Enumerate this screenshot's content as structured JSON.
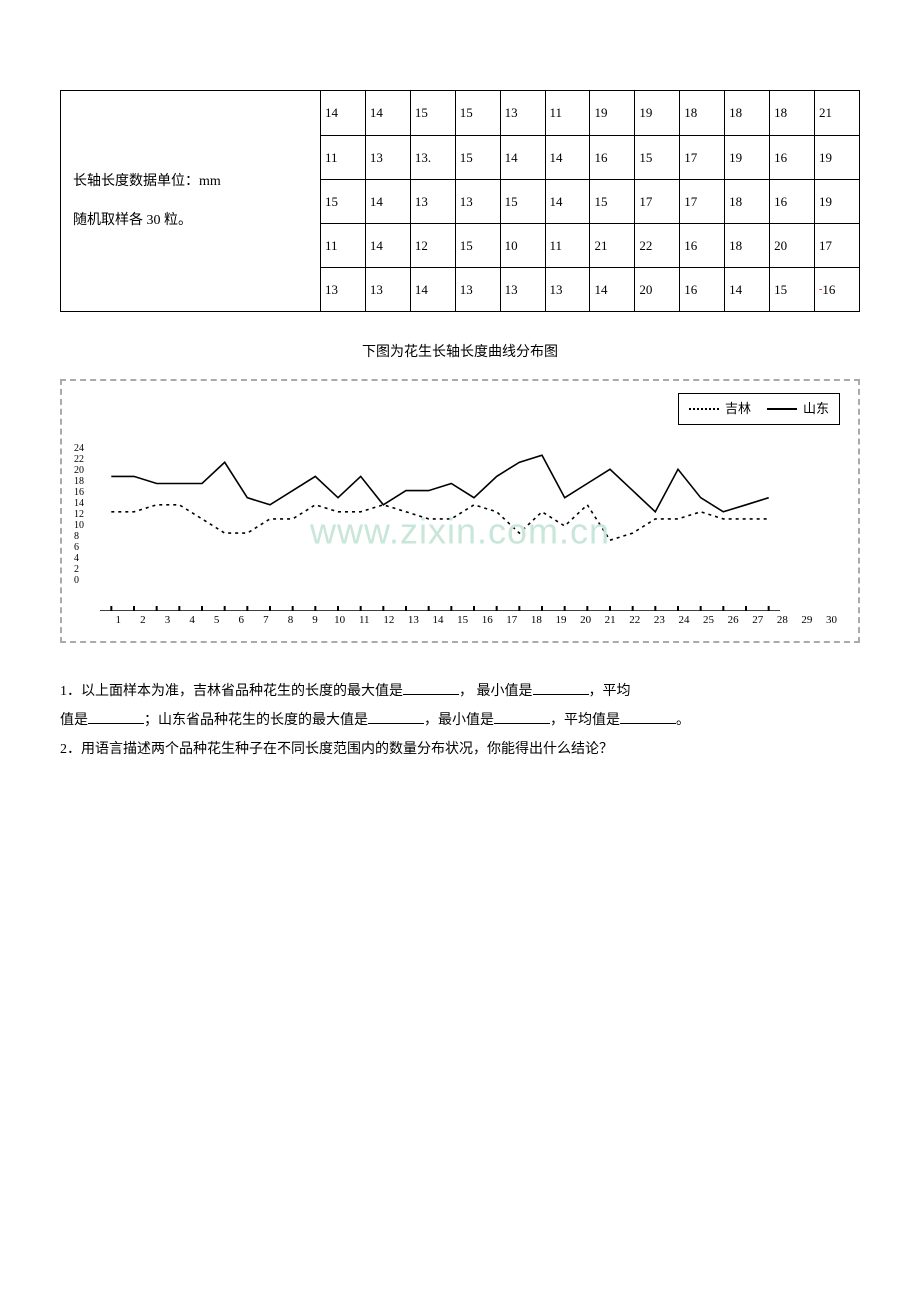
{
  "table": {
    "desc_line1": "长轴长度数据单位：mm",
    "desc_line2": "随机取样各 30 粒。",
    "rows": [
      [
        "14",
        "14",
        "15",
        "15",
        "13",
        "11",
        "19",
        "19",
        "18",
        "18",
        "18",
        "21"
      ],
      [
        "11",
        "13",
        "13.",
        "15",
        "14",
        "14",
        "16",
        "15",
        "17",
        "19",
        "16",
        "19"
      ],
      [
        "15",
        "14",
        "13",
        "13",
        "15",
        "14",
        "15",
        "17",
        "17",
        "18",
        "16",
        "19"
      ],
      [
        "11",
        "14",
        "12",
        "15",
        "10",
        "11",
        "21",
        "22",
        "16",
        "18",
        "20",
        "17"
      ],
      [
        "13",
        "13",
        "14",
        "13",
        "13",
        "13",
        "14",
        "20",
        "16",
        "14",
        "15",
        "16"
      ]
    ],
    "last_cell_prefix": "-",
    "last_cell_value": "16"
  },
  "chart": {
    "title": "下图为花生长轴长度曲线分布图",
    "legend": {
      "a": "吉林",
      "b": "山东"
    },
    "watermark": "www.zixin.com.cn",
    "ylabels": [
      "24",
      "22",
      "20",
      "18",
      "16",
      "14",
      "12",
      "10",
      "8",
      "6",
      "4",
      "2",
      "0"
    ],
    "xmax": 30,
    "ylim": [
      0,
      24
    ],
    "jilin": [
      14,
      14,
      15,
      15,
      13,
      11,
      11,
      13,
      13,
      15,
      14,
      14,
      15,
      14,
      13,
      13,
      15,
      14,
      11,
      14,
      12,
      15,
      10,
      11,
      13,
      13,
      14,
      13,
      13,
      13
    ],
    "shandong": [
      19,
      19,
      18,
      18,
      18,
      21,
      16,
      15,
      17,
      19,
      16,
      19,
      15,
      17,
      17,
      18,
      16,
      19,
      21,
      22,
      16,
      18,
      20,
      17,
      14,
      20,
      16,
      14,
      15,
      16
    ],
    "grid_dash": "4 3",
    "solid_color": "#000000",
    "dotted_color": "#000000",
    "bg": "#ffffff"
  },
  "questions": {
    "q1_pre": "1．以上面样本为准，吉林省品种花生的长度的最大值是",
    "q1_mid1": "， 最小值是",
    "q1_mid2": "，平均",
    "q1_line2a": "值是",
    "q1_line2b": "；山东省品种花生的长度的最大值是",
    "q1_line2c": "，最小值是",
    "q1_line2d": "，平均值是",
    "q1_end": "。",
    "q2": "2．用语言描述两个品种花生种子在不同长度范围内的数量分布状况，你能得出什么结论？"
  }
}
